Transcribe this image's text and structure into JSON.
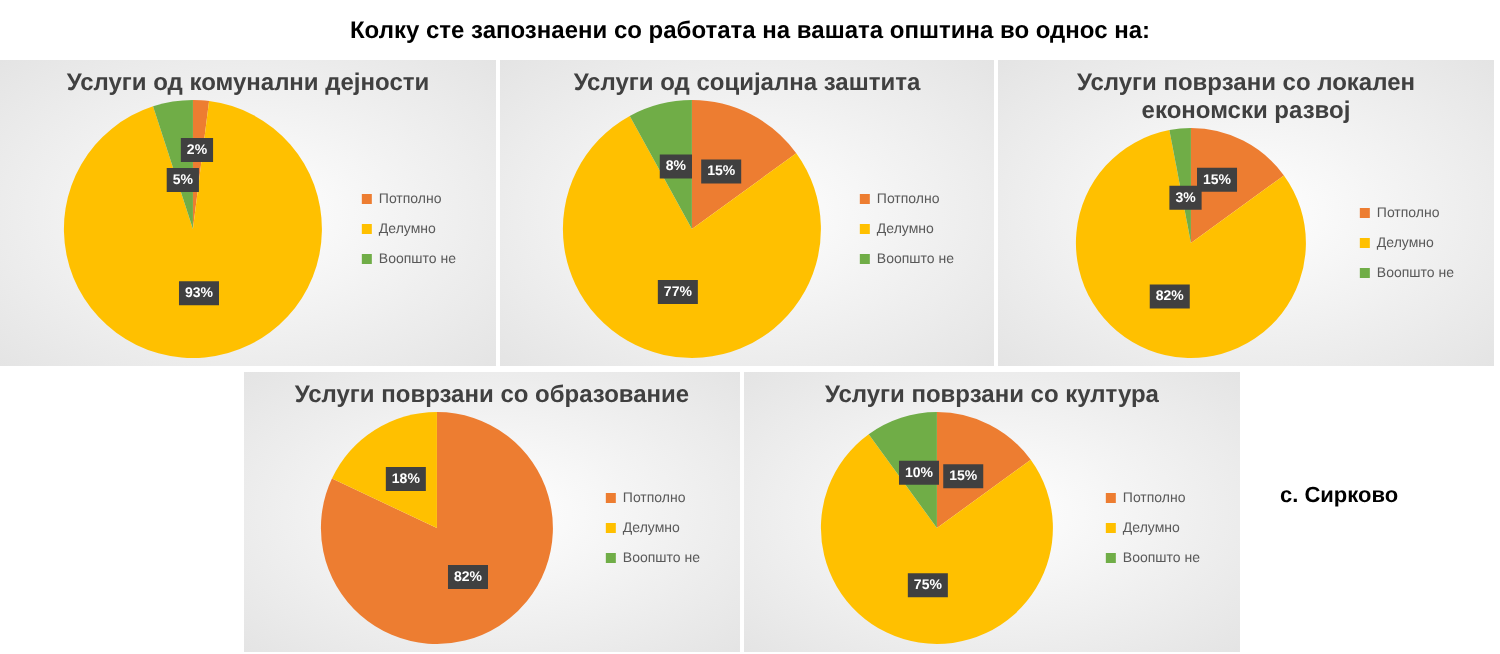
{
  "chart_data": [
    {
      "type": "other",
      "title": "Колку сте запознаени со работата на вашата општина во однос на:",
      "annotations": [
        "с. Сирково"
      ]
    },
    {
      "type": "pie",
      "title": "Услуги од комунални дејности",
      "categories": [
        "Потполно",
        "Делумно",
        "Воопшто не"
      ],
      "values": [
        2,
        93,
        5
      ],
      "value_labels": [
        "2%",
        "93%",
        "5%"
      ],
      "colors": [
        "#ed7d31",
        "#ffc000",
        "#70ad47"
      ],
      "legend": "right"
    },
    {
      "type": "pie",
      "title": "Услуги од социјална заштита",
      "categories": [
        "Потполно",
        "Делумно",
        "Воопшто не"
      ],
      "values": [
        15,
        77,
        8
      ],
      "value_labels": [
        "15%",
        "77%",
        "8%"
      ],
      "colors": [
        "#ed7d31",
        "#ffc000",
        "#70ad47"
      ],
      "legend": "right"
    },
    {
      "type": "pie",
      "title": "Услуги поврзани со локален економски развој",
      "categories": [
        "Потполно",
        "Делумно",
        "Воопшто не"
      ],
      "values": [
        15,
        82,
        3
      ],
      "value_labels": [
        "15%",
        "82%",
        "3%"
      ],
      "colors": [
        "#ed7d31",
        "#ffc000",
        "#70ad47"
      ],
      "legend": "right"
    },
    {
      "type": "pie",
      "title": "Услуги поврзани со образование",
      "categories": [
        "Потполно",
        "Делумно",
        "Воопшто не"
      ],
      "values": [
        82,
        18,
        0
      ],
      "value_labels": [
        "82%",
        "18%",
        null
      ],
      "colors": [
        "#ed7d31",
        "#ffc000",
        "#70ad47"
      ],
      "legend": "right"
    },
    {
      "type": "pie",
      "title": "Услуги поврзани со култура",
      "categories": [
        "Потполно",
        "Делумно",
        "Воопшто не"
      ],
      "values": [
        15,
        75,
        10
      ],
      "value_labels": [
        "15%",
        "75%",
        "10%"
      ],
      "colors": [
        "#ed7d31",
        "#ffc000",
        "#70ad47"
      ],
      "legend": "right"
    }
  ]
}
